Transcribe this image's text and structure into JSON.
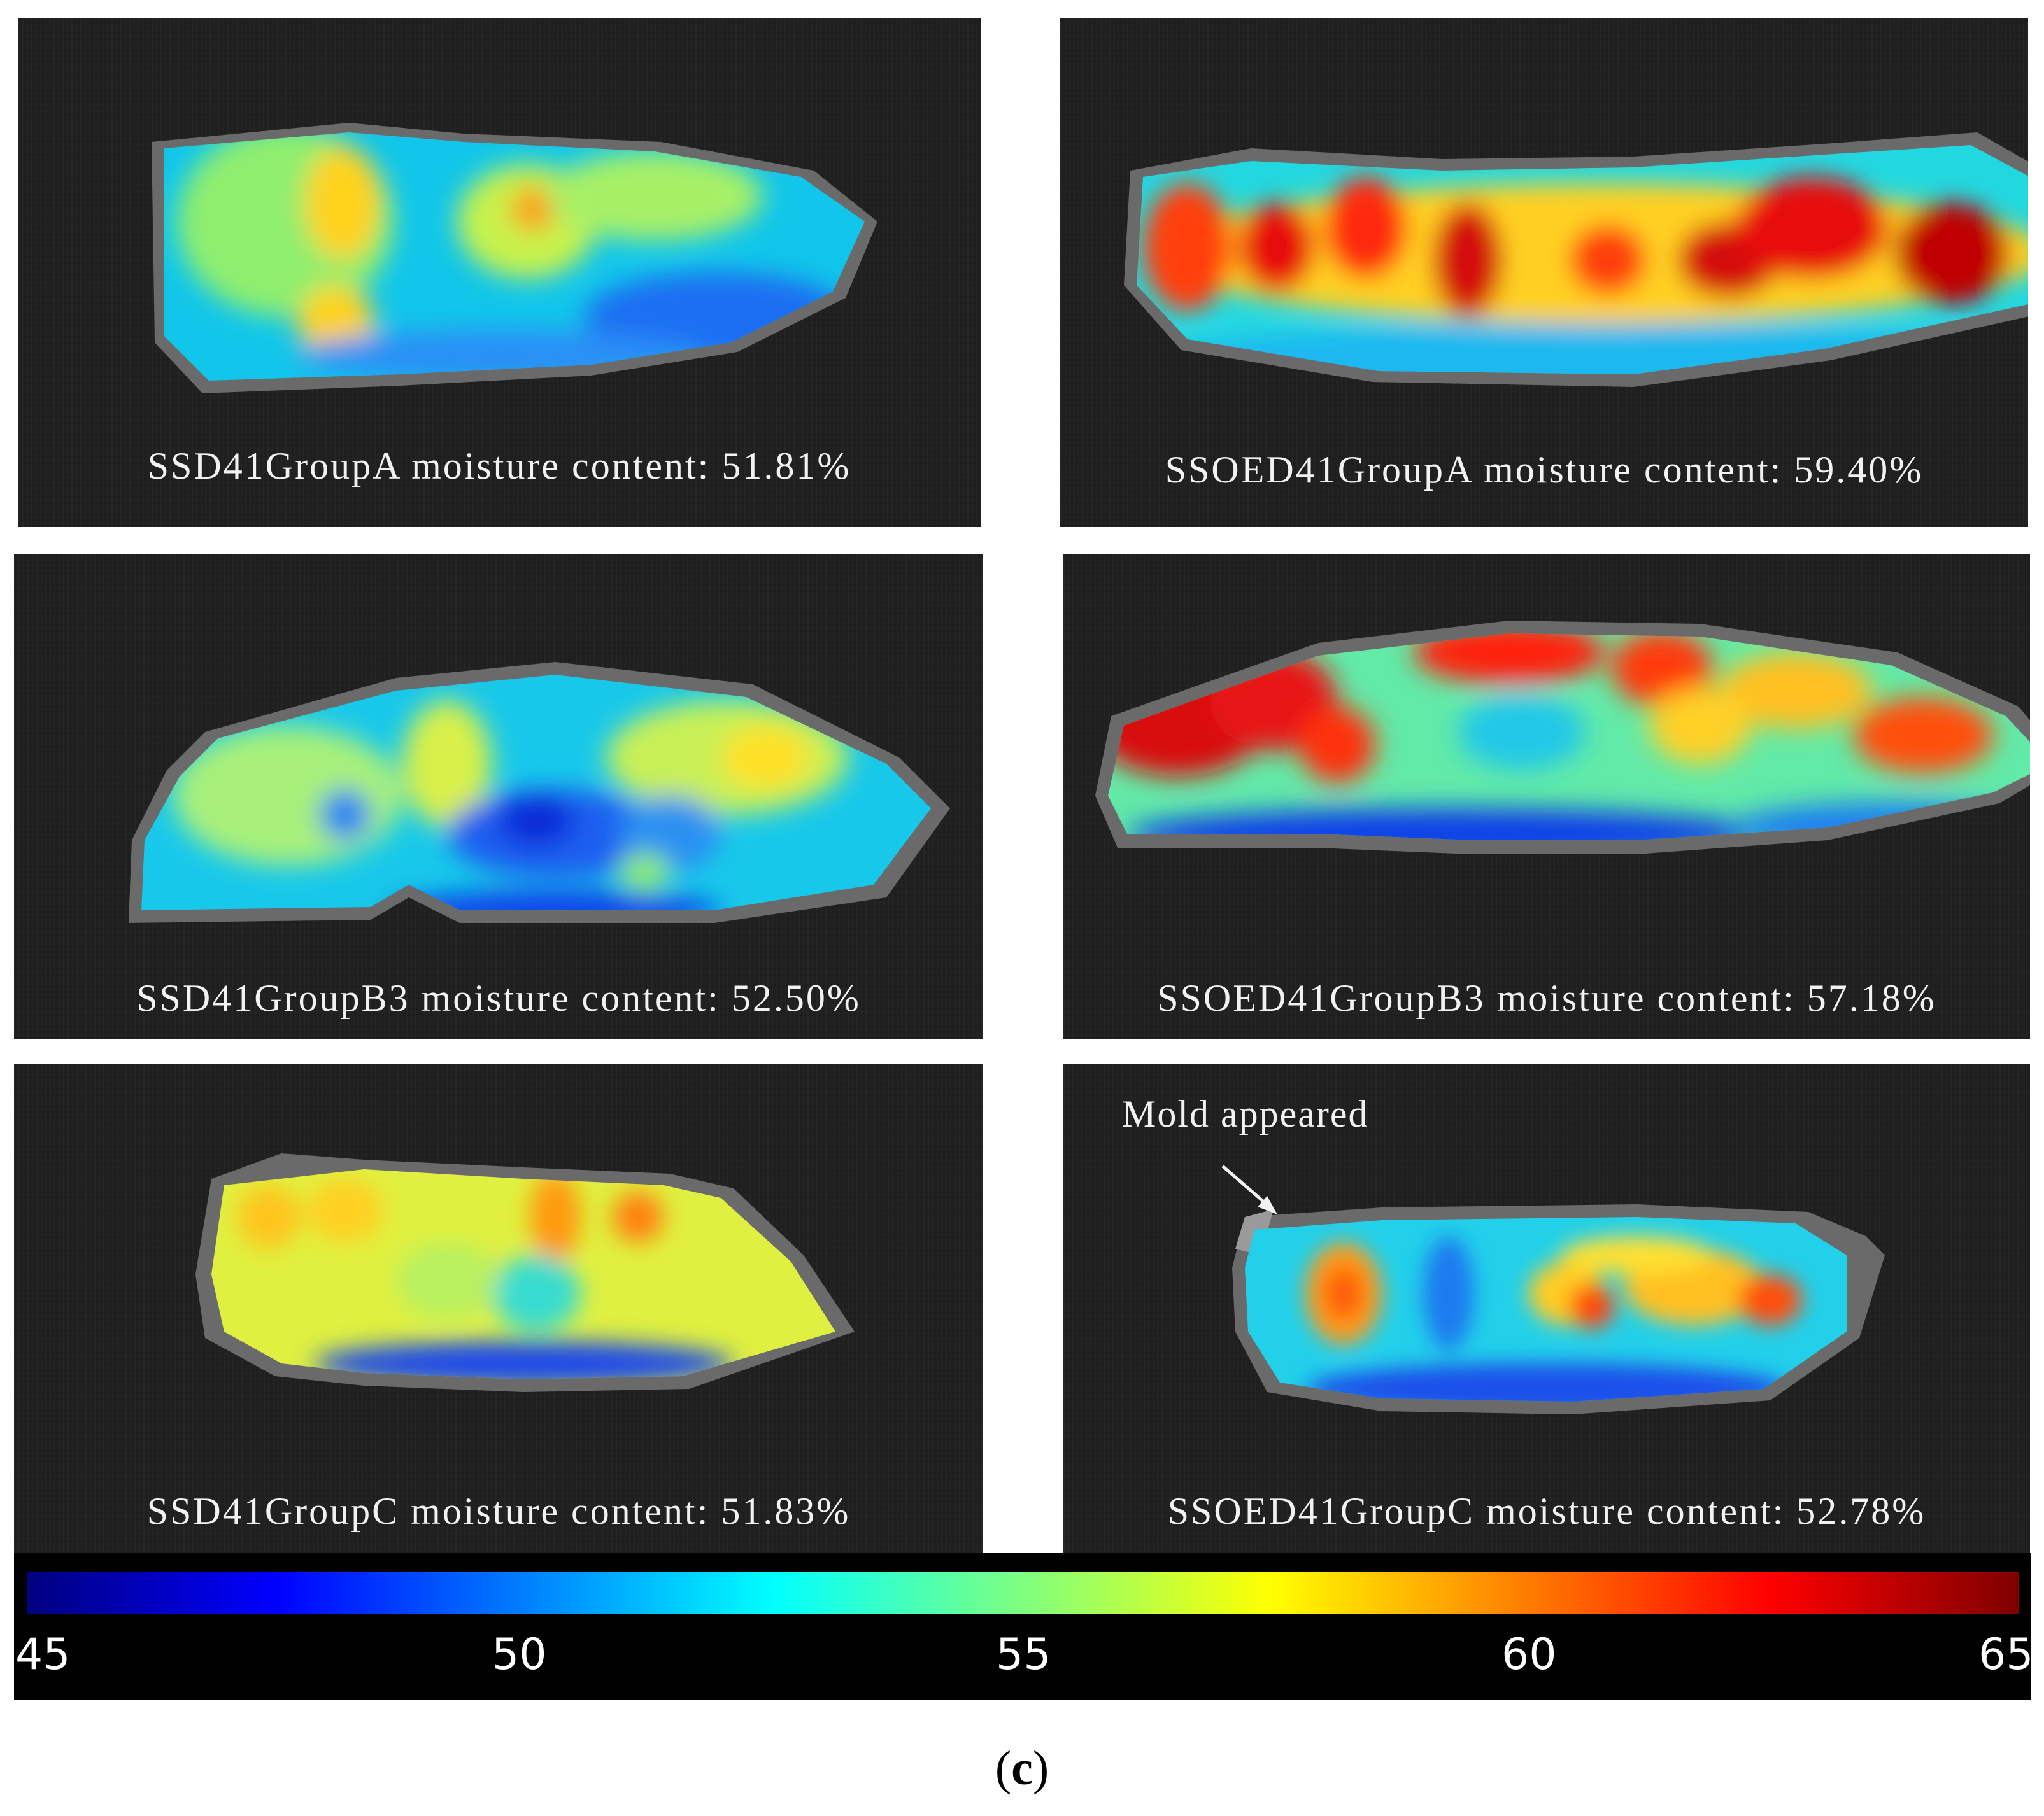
{
  "panels": [
    {
      "id": "ssd41-group-a",
      "caption": "SSD41GroupA moisture content: 51.81%",
      "moisture_percent": 51.81
    },
    {
      "id": "ssoed41-group-a",
      "caption": "SSOED41GroupA moisture content: 59.40%",
      "moisture_percent": 59.4
    },
    {
      "id": "ssd41-group-b3",
      "caption": "SSD41GroupB3 moisture content: 52.50%",
      "moisture_percent": 52.5
    },
    {
      "id": "ssoed41-group-b3",
      "caption": "SSOED41GroupB3 moisture content: 57.18%",
      "moisture_percent": 57.18
    },
    {
      "id": "ssd41-group-c",
      "caption": "SSD41GroupC moisture content: 51.83%",
      "moisture_percent": 51.83
    },
    {
      "id": "ssoed41-group-c",
      "caption": "SSOED41GroupC moisture content: 52.78%",
      "moisture_percent": 52.78
    }
  ],
  "annotation": {
    "text": "Mold appeared"
  },
  "colorbar": {
    "min": 45,
    "max": 65,
    "ticks": [
      "45",
      "50",
      "55",
      "60",
      "65"
    ],
    "colormap": "jet",
    "stops": [
      "#00007f",
      "#0000ff",
      "#007fff",
      "#00ffff",
      "#7fff7f",
      "#ffff00",
      "#ff7f00",
      "#ff0000",
      "#7f0000"
    ]
  },
  "figure_label": {
    "open": "(",
    "letter": "c",
    "close": ")"
  }
}
